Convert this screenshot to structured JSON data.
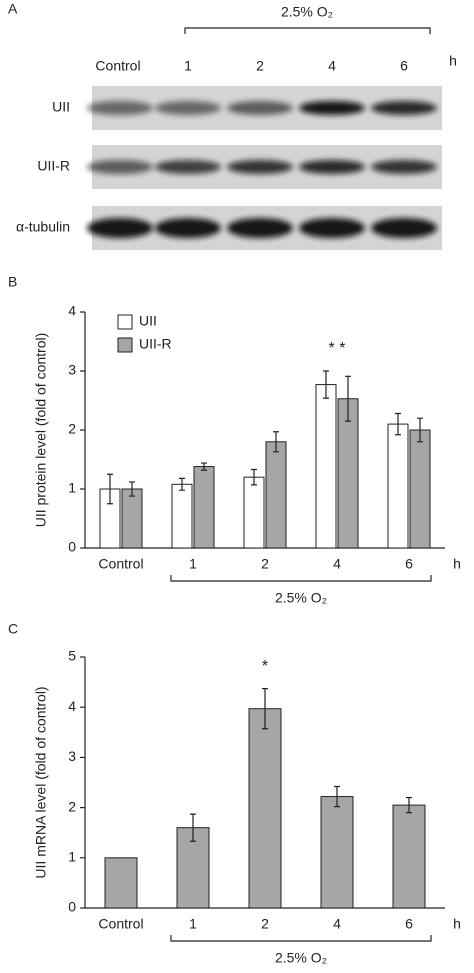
{
  "blot": {
    "panel": "A",
    "bracket_label": "2.5% O₂",
    "lanes": [
      "Control",
      "1",
      "2",
      "4",
      "6"
    ],
    "unit": "h",
    "rows": [
      "UII",
      "UII-R",
      "α-tubulin"
    ]
  },
  "chart_data": [
    {
      "type": "bar",
      "panel": "B",
      "ylabel": "UII protein level (fold of control)",
      "categories": [
        "Control",
        "1",
        "2",
        "4",
        "6"
      ],
      "unit": "h",
      "bracket_label": "2.5% O₂",
      "series": [
        {
          "name": "UII",
          "color": "#ffffff",
          "values": [
            1.0,
            1.08,
            1.2,
            2.77,
            2.1
          ],
          "errors": [
            0.25,
            0.1,
            0.13,
            0.23,
            0.18
          ]
        },
        {
          "name": "UII-R",
          "color": "#a6a6a6",
          "values": [
            1.0,
            1.38,
            1.8,
            2.53,
            2.0
          ],
          "errors": [
            0.12,
            0.06,
            0.17,
            0.38,
            0.2
          ]
        }
      ],
      "ylim": [
        0,
        4
      ],
      "yticks": [
        0,
        1,
        2,
        3,
        4
      ],
      "legend": "top-left",
      "grid": false,
      "annotations": [
        {
          "text": "* *",
          "category": "4"
        }
      ]
    },
    {
      "type": "bar",
      "panel": "C",
      "ylabel": "UII mRNA level (fold of control)",
      "categories": [
        "Control",
        "1",
        "2",
        "4",
        "6"
      ],
      "unit": "h",
      "bracket_label": "2.5% O₂",
      "series": [
        {
          "name": "UII",
          "color": "#a6a6a6",
          "values": [
            1.0,
            1.6,
            3.97,
            2.22,
            2.05
          ],
          "errors": [
            null,
            0.27,
            0.4,
            0.2,
            0.15
          ]
        }
      ],
      "ylim": [
        0,
        5
      ],
      "yticks": [
        0,
        1,
        2,
        3,
        4,
        5
      ],
      "grid": false,
      "annotations": [
        {
          "text": "*",
          "category": "2"
        }
      ]
    }
  ]
}
